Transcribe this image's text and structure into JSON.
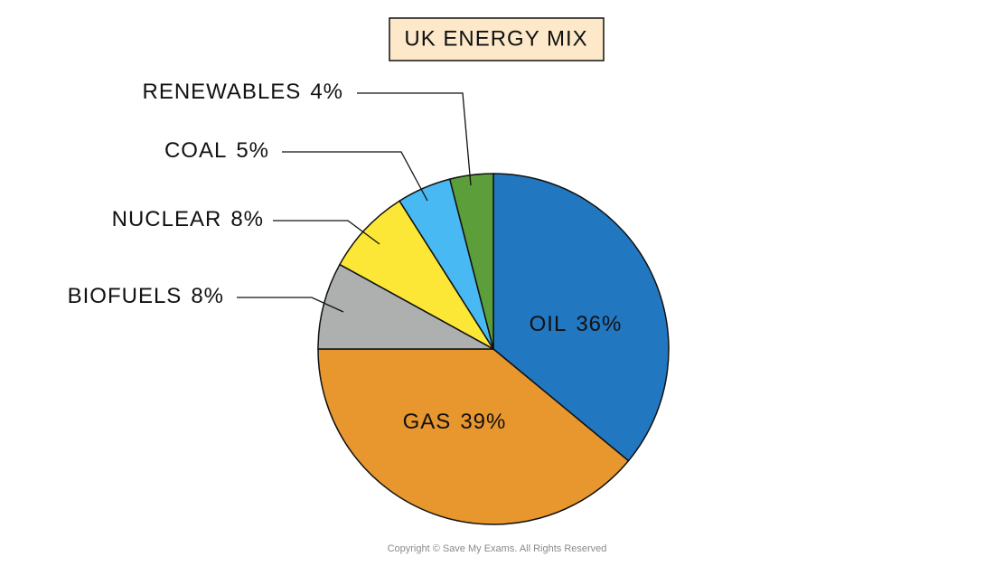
{
  "chart_data": {
    "type": "pie",
    "title": "UK ENERGY MIX",
    "categories": [
      "OIL",
      "GAS",
      "BIOFUELS",
      "NUCLEAR",
      "COAL",
      "RENEWABLES"
    ],
    "values": [
      36,
      39,
      8,
      8,
      5,
      4
    ],
    "value_labels": [
      "36%",
      "39%",
      "8%",
      "8%",
      "5%",
      "4%"
    ],
    "colors": [
      "#2177c0",
      "#e8962e",
      "#aeb0b0",
      "#fde736",
      "#48b9f2",
      "#5c9e3a"
    ],
    "source": "Copyright © Save My Exams. All Rights Reserved"
  }
}
